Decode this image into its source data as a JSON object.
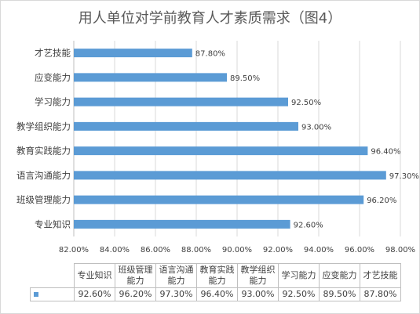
{
  "chart_data": {
    "type": "bar",
    "orientation": "horizontal",
    "title": "用人单位对学前教育人才素质需求（图4）",
    "categories": [
      "专业知识",
      "班级管理能力",
      "语言沟通能力",
      "教育实践能力",
      "教学组织能力",
      "学习能力",
      "应变能力",
      "才艺技能"
    ],
    "values": [
      92.6,
      96.2,
      97.3,
      96.4,
      93.0,
      92.5,
      89.5,
      87.8
    ],
    "value_labels": [
      "92.60%",
      "96.20%",
      "97.30%",
      "96.40%",
      "93.00%",
      "92.50%",
      "89.50%",
      "87.80%"
    ],
    "xlim": [
      82,
      98
    ],
    "x_ticks": [
      "82.00%",
      "84.00%",
      "86.00%",
      "88.00%",
      "90.00%",
      "92.00%",
      "94.00%",
      "96.00%",
      "98.00%"
    ],
    "grid": true,
    "series_color": "#5b9bd5",
    "data_table": {
      "headers": [
        "专业知识",
        "班级管理\n能力",
        "语言沟通\n能力",
        "教育实践\n能力",
        "教学组织\n能力",
        "学习能力",
        "应变能力",
        "才艺技能"
      ],
      "row_values": [
        "92.60%",
        "96.20%",
        "97.30%",
        "96.40%",
        "93.00%",
        "92.50%",
        "89.50%",
        "87.80%"
      ]
    }
  }
}
